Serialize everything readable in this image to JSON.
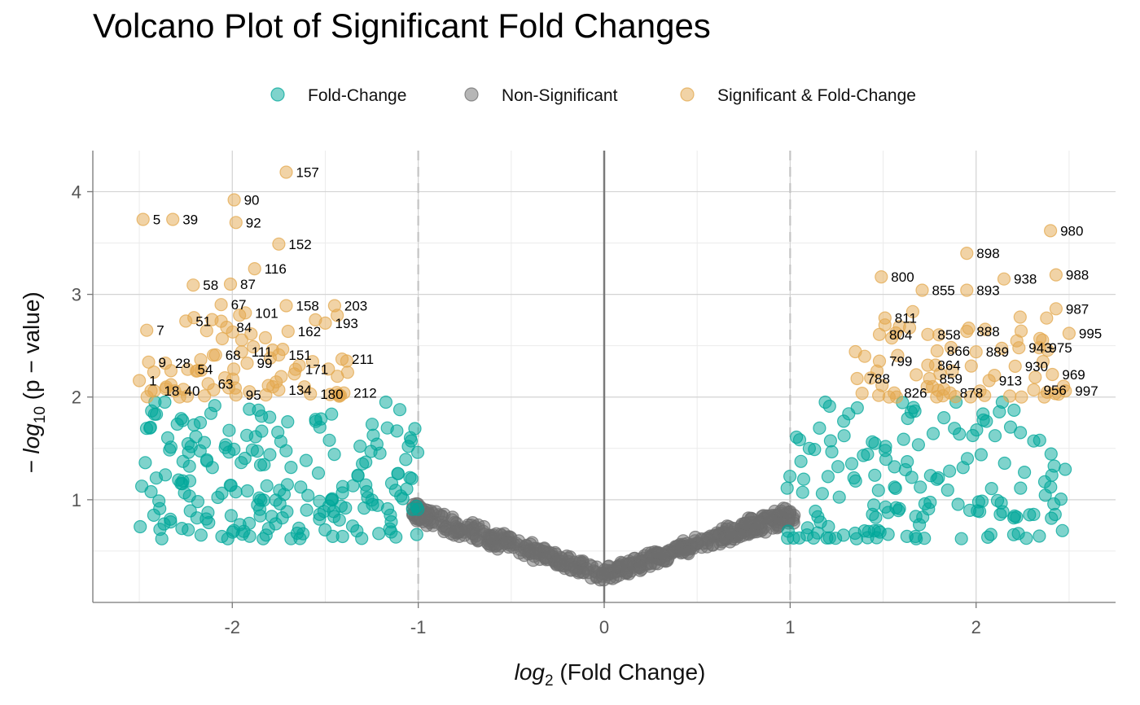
{
  "chart_data": {
    "type": "scatter",
    "title": "Volcano Plot of Significant Fold Changes",
    "xlabel": {
      "prefix": "log",
      "sub": "2",
      "rest": "(Fold Change)"
    },
    "ylabel": {
      "prefix": "− log",
      "sub": "10",
      "rest": "(p − value)"
    },
    "xlim": [
      -2.75,
      2.75
    ],
    "ylim": [
      0.0,
      4.4
    ],
    "xticks": [
      -2,
      -1,
      0,
      1,
      2
    ],
    "yticks": [
      1,
      2,
      3,
      4
    ],
    "xtick_labels": [
      "-2",
      "-1",
      "0",
      "1",
      "2"
    ],
    "ytick_labels": [
      "1",
      "2",
      "3",
      "4"
    ],
    "thresholds": {
      "fold_change": [
        -1,
        1
      ]
    },
    "grid": true,
    "legend_position": "top",
    "colors": {
      "Fold-Change": "#00a79a",
      "Non-Significant": "#6e6e6e",
      "Significant & Fold-Change": "#e3a84e"
    },
    "series": [
      {
        "name": "Fold-Change",
        "points": []
      },
      {
        "name": "Non-Significant",
        "points": []
      },
      {
        "name": "Significant & Fold-Change",
        "points": []
      }
    ],
    "labeled_points": [
      {
        "id": "157",
        "x": -1.71,
        "y": 4.19
      },
      {
        "id": "90",
        "x": -1.99,
        "y": 3.92
      },
      {
        "id": "92",
        "x": -1.98,
        "y": 3.7
      },
      {
        "id": "5",
        "x": -2.48,
        "y": 3.73
      },
      {
        "id": "39",
        "x": -2.32,
        "y": 3.73
      },
      {
        "id": "152",
        "x": -1.75,
        "y": 3.49
      },
      {
        "id": "116",
        "x": -1.88,
        "y": 3.25
      },
      {
        "id": "58",
        "x": -2.21,
        "y": 3.09
      },
      {
        "id": "87",
        "x": -2.01,
        "y": 3.1
      },
      {
        "id": "67",
        "x": -2.06,
        "y": 2.9
      },
      {
        "id": "101",
        "x": -1.93,
        "y": 2.82
      },
      {
        "id": "158",
        "x": -1.71,
        "y": 2.89
      },
      {
        "id": "203",
        "x": -1.45,
        "y": 2.89
      },
      {
        "id": "51",
        "x": -2.25,
        "y": 2.74
      },
      {
        "id": "84",
        "x": -2.03,
        "y": 2.68
      },
      {
        "id": "162",
        "x": -1.7,
        "y": 2.64
      },
      {
        "id": "193",
        "x": -1.5,
        "y": 2.72
      },
      {
        "id": "7",
        "x": -2.46,
        "y": 2.65
      },
      {
        "id": "68",
        "x": -2.09,
        "y": 2.41
      },
      {
        "id": "111",
        "x": -1.95,
        "y": 2.44
      },
      {
        "id": "151",
        "x": -1.75,
        "y": 2.41
      },
      {
        "id": "211",
        "x": -1.41,
        "y": 2.37
      },
      {
        "id": "9",
        "x": -2.45,
        "y": 2.34
      },
      {
        "id": "28",
        "x": -2.36,
        "y": 2.33
      },
      {
        "id": "99",
        "x": -1.92,
        "y": 2.33
      },
      {
        "id": "54",
        "x": -2.24,
        "y": 2.27
      },
      {
        "id": "171",
        "x": -1.66,
        "y": 2.27
      },
      {
        "id": "1",
        "x": -2.5,
        "y": 2.16
      },
      {
        "id": "63",
        "x": -2.13,
        "y": 2.13
      },
      {
        "id": "18",
        "x": -2.42,
        "y": 2.06
      },
      {
        "id": "40",
        "x": -2.31,
        "y": 2.06
      },
      {
        "id": "95",
        "x": -1.98,
        "y": 2.02
      },
      {
        "id": "134",
        "x": -1.75,
        "y": 2.07
      },
      {
        "id": "180",
        "x": -1.58,
        "y": 2.03
      },
      {
        "id": "212",
        "x": -1.4,
        "y": 2.04
      },
      {
        "id": "980",
        "x": 2.4,
        "y": 3.62
      },
      {
        "id": "898",
        "x": 1.95,
        "y": 3.4
      },
      {
        "id": "988",
        "x": 2.43,
        "y": 3.19
      },
      {
        "id": "800",
        "x": 1.49,
        "y": 3.17
      },
      {
        "id": "938",
        "x": 2.15,
        "y": 3.15
      },
      {
        "id": "855",
        "x": 1.71,
        "y": 3.04
      },
      {
        "id": "893",
        "x": 1.95,
        "y": 3.04
      },
      {
        "id": "987",
        "x": 2.43,
        "y": 2.86
      },
      {
        "id": "811",
        "x": 1.51,
        "y": 2.77
      },
      {
        "id": "804",
        "x": 1.48,
        "y": 2.61
      },
      {
        "id": "858",
        "x": 1.74,
        "y": 2.61
      },
      {
        "id": "888",
        "x": 1.95,
        "y": 2.64
      },
      {
        "id": "995",
        "x": 2.5,
        "y": 2.62
      },
      {
        "id": "943",
        "x": 2.23,
        "y": 2.48
      },
      {
        "id": "975",
        "x": 2.34,
        "y": 2.48
      },
      {
        "id": "866",
        "x": 1.79,
        "y": 2.45
      },
      {
        "id": "889",
        "x": 2.0,
        "y": 2.44
      },
      {
        "id": "799",
        "x": 1.48,
        "y": 2.35
      },
      {
        "id": "864",
        "x": 1.74,
        "y": 2.31
      },
      {
        "id": "930",
        "x": 2.21,
        "y": 2.3
      },
      {
        "id": "969",
        "x": 2.41,
        "y": 2.22
      },
      {
        "id": "788",
        "x": 1.36,
        "y": 2.18
      },
      {
        "id": "859",
        "x": 1.75,
        "y": 2.18
      },
      {
        "id": "913",
        "x": 2.07,
        "y": 2.16
      },
      {
        "id": "826",
        "x": 1.56,
        "y": 2.04
      },
      {
        "id": "878",
        "x": 1.86,
        "y": 2.04
      },
      {
        "id": "956",
        "x": 2.31,
        "y": 2.07
      },
      {
        "id": "997",
        "x": 2.48,
        "y": 2.06
      }
    ]
  }
}
